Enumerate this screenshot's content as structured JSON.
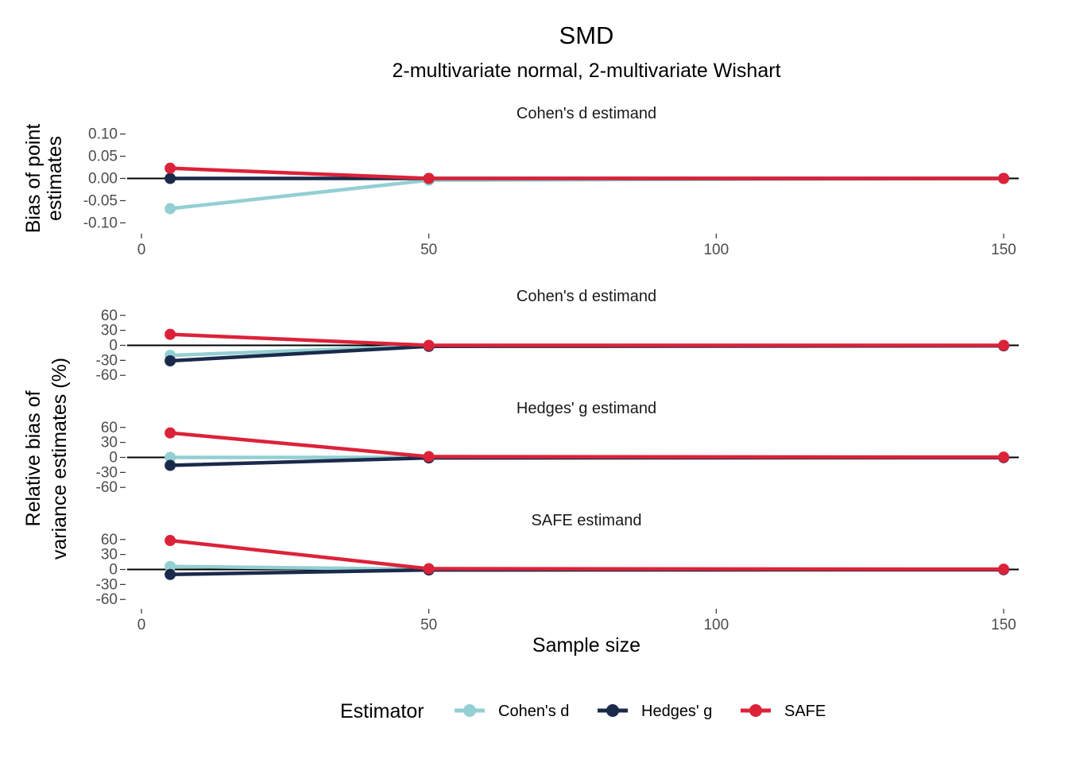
{
  "title": "SMD",
  "subtitle": "2-multivariate normal, 2-multivariate Wishart",
  "colors": {
    "cohens_d": "#93cfd3",
    "hedges_g": "#1b2a4b",
    "safe": "#dc2239",
    "zero_line": "#000000"
  },
  "legend": {
    "title": "Estimator",
    "items": [
      "Cohen's d",
      "Hedges' g",
      "SAFE"
    ]
  },
  "chart_data": {
    "type": "line",
    "xlabel": "Sample size",
    "x_ticks": [
      0,
      50,
      100,
      150
    ],
    "xlim": [
      0,
      150
    ],
    "legend_position": "bottom",
    "grid": false,
    "panels": [
      {
        "strip": "Cohen's d estimand",
        "ylabel_lines": [
          "Bias of point",
          "estimates"
        ],
        "ylim": [
          -0.11,
          0.11
        ],
        "y_ticks": [
          0.1,
          0.05,
          0.0,
          -0.05,
          -0.1
        ],
        "y_tick_labels": [
          "0.10",
          "0.05",
          "0.00",
          "-0.05",
          "-0.10"
        ],
        "x": [
          5,
          50,
          150
        ],
        "series": [
          {
            "name": "Cohen's d",
            "values": [
              -0.068,
              -0.004,
              0.0
            ]
          },
          {
            "name": "Hedges' g",
            "values": [
              0.0,
              0.0,
              0.0
            ]
          },
          {
            "name": "SAFE",
            "values": [
              0.023,
              0.0,
              0.0
            ]
          }
        ]
      },
      {
        "strip": "Cohen's d estimand",
        "ylim": [
          -66,
          66
        ],
        "y_ticks": [
          60,
          30,
          0,
          -30,
          -60
        ],
        "y_tick_labels": [
          "60",
          "30",
          "0",
          "-30",
          "-60"
        ],
        "x": [
          5,
          50,
          150
        ],
        "series": [
          {
            "name": "Cohen's d",
            "values": [
              -20,
              -1,
              -0.5
            ]
          },
          {
            "name": "Hedges' g",
            "values": [
              -31,
              -2,
              -1
            ]
          },
          {
            "name": "SAFE",
            "values": [
              22,
              0,
              0
            ]
          }
        ]
      },
      {
        "strip": "Hedges' g estimand",
        "ylim": [
          -66,
          66
        ],
        "y_ticks": [
          60,
          30,
          0,
          -30,
          -60
        ],
        "y_tick_labels": [
          "60",
          "30",
          "0",
          "-30",
          "-60"
        ],
        "x": [
          5,
          50,
          150
        ],
        "series": [
          {
            "name": "Cohen's d",
            "values": [
              0,
              0,
              0
            ]
          },
          {
            "name": "Hedges' g",
            "values": [
              -16,
              -1,
              -0.5
            ]
          },
          {
            "name": "SAFE",
            "values": [
              49,
              1.5,
              0.5
            ]
          }
        ]
      },
      {
        "strip": "SAFE estimand",
        "ylim": [
          -66,
          66
        ],
        "y_ticks": [
          60,
          30,
          0,
          -30,
          -60
        ],
        "y_tick_labels": [
          "60",
          "30",
          "0",
          "-30",
          "-60"
        ],
        "x": [
          5,
          50,
          150
        ],
        "series": [
          {
            "name": "Cohen's d",
            "values": [
              6,
              0.5,
              0
            ]
          },
          {
            "name": "Hedges' g",
            "values": [
              -10,
              -1,
              -0.5
            ]
          },
          {
            "name": "SAFE",
            "values": [
              58,
              1.5,
              0.5
            ]
          }
        ]
      }
    ],
    "shared_ylabel_lines": [
      "Relative bias of",
      "variance estimates (%)"
    ]
  }
}
